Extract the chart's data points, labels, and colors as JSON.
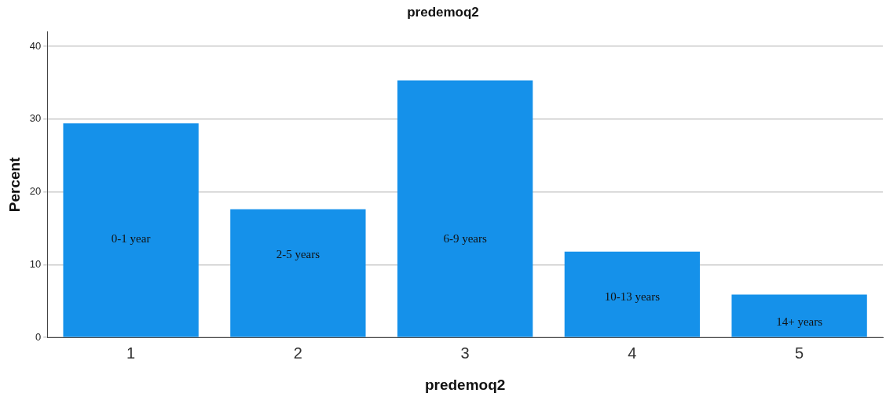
{
  "chart_data": {
    "type": "bar",
    "title": "predemoq2",
    "xlabel": "predemoq2",
    "ylabel": "Percent",
    "categories": [
      "1",
      "2",
      "3",
      "4",
      "5"
    ],
    "values": [
      29.4,
      17.6,
      35.3,
      11.8,
      5.9
    ],
    "color": "#1591ea",
    "ylim": [
      0,
      42
    ],
    "yticks": [
      0,
      10,
      20,
      30,
      40
    ],
    "grid": "y",
    "annotations": [
      "0-1 year",
      "2-5 years",
      "6-9 years",
      "10-13 years",
      "14+ years"
    ]
  }
}
